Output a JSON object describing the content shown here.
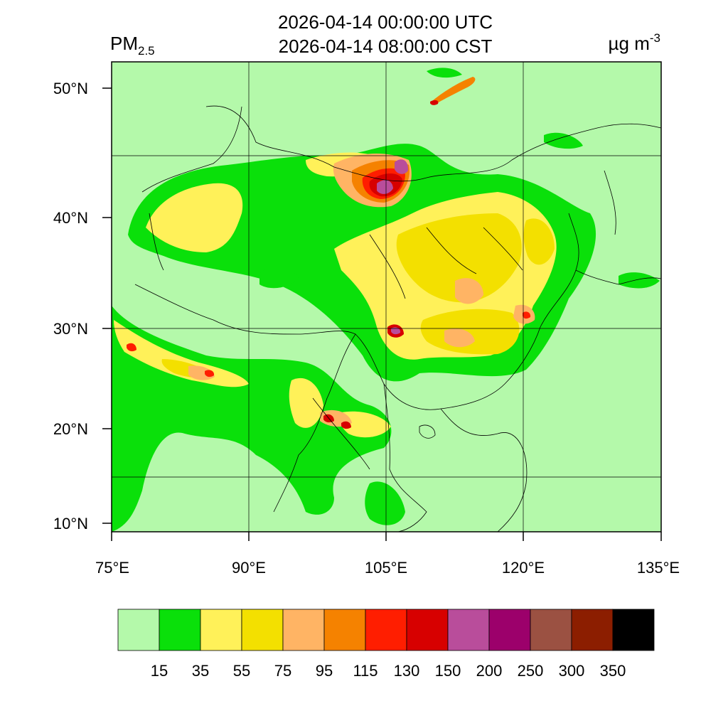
{
  "title": {
    "line1": "2026-04-14 00:00:00 UTC",
    "line2": "2026-04-14 08:00:00 CST"
  },
  "variable": {
    "base": "PM",
    "subscript": "2.5"
  },
  "units": {
    "base": "µg m",
    "superscript": "-3"
  },
  "axes": {
    "longitude_ticks": [
      "75°E",
      "90°E",
      "105°E",
      "120°E",
      "135°E"
    ],
    "latitude_ticks": [
      "50°N",
      "40°N",
      "30°N",
      "20°N",
      "10°N"
    ]
  },
  "colorbar": {
    "colors": [
      "#b4f9aa",
      "#0ae00a",
      "#fff159",
      "#f3e000",
      "#ffb464",
      "#f58200",
      "#ff1e00",
      "#d70000",
      "#b94d9b",
      "#9c006b",
      "#9b5142",
      "#8c1e00",
      "#000000"
    ],
    "labels": [
      "15",
      "35",
      "55",
      "75",
      "95",
      "115",
      "130",
      "150",
      "200",
      "250",
      "300",
      "350"
    ]
  }
}
